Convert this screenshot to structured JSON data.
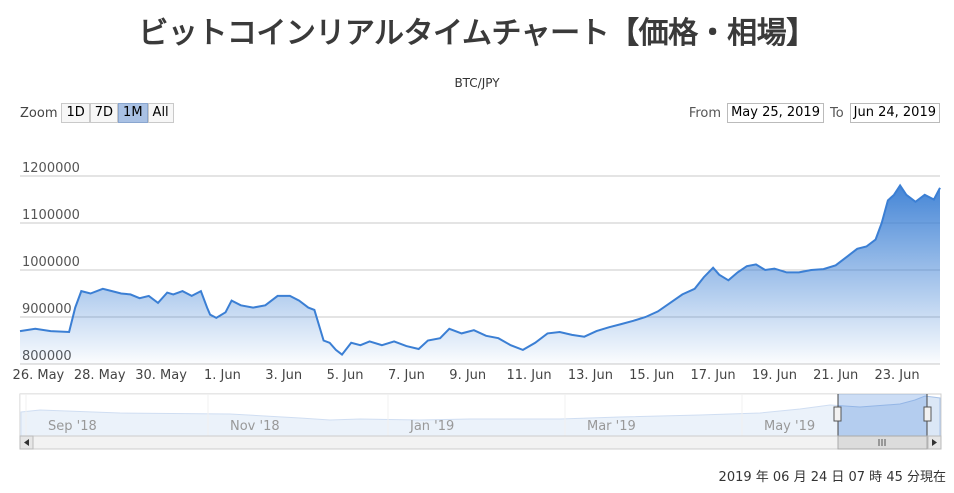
{
  "title": "ビットコインリアルタイムチャート【価格・相場】",
  "subtitle": "BTC/JPY",
  "zoom": {
    "label": "Zoom",
    "buttons": [
      "1D",
      "7D",
      "1M",
      "All"
    ],
    "active": "1M"
  },
  "range": {
    "from_label": "From",
    "from_value": "May 25, 2019",
    "to_label": "To",
    "to_value": "Jun 24, 2019"
  },
  "timestamp": "2019 年 06 月 24 日  07 時 45 分現在",
  "colors": {
    "line": "#3b7fd4",
    "fill_top": "#3b7fd4",
    "fill_bottom": "#ffffff",
    "grid": "#c8c8c8"
  },
  "chart_data": {
    "type": "area",
    "ylim": [
      800000,
      1200000
    ],
    "y_ticks": [
      "800000",
      "900000",
      "1000000",
      "1100000",
      "1200000"
    ],
    "x_range_days": [
      0,
      30
    ],
    "x_ticks": [
      {
        "label": "26. May",
        "day": 0.6
      },
      {
        "label": "28. May",
        "day": 2.6
      },
      {
        "label": "30. May",
        "day": 4.6
      },
      {
        "label": "1. Jun",
        "day": 6.6
      },
      {
        "label": "3. Jun",
        "day": 8.6
      },
      {
        "label": "5. Jun",
        "day": 10.6
      },
      {
        "label": "7. Jun",
        "day": 12.6
      },
      {
        "label": "9. Jun",
        "day": 14.6
      },
      {
        "label": "11. Jun",
        "day": 16.6
      },
      {
        "label": "13. Jun",
        "day": 18.6
      },
      {
        "label": "15. Jun",
        "day": 20.6
      },
      {
        "label": "17. Jun",
        "day": 22.6
      },
      {
        "label": "19. Jun",
        "day": 24.6
      },
      {
        "label": "21. Jun",
        "day": 26.6
      },
      {
        "label": "23. Jun",
        "day": 28.6
      }
    ],
    "series": [
      {
        "x": [
          0,
          0.5,
          1.0,
          1.6,
          1.8,
          2.0,
          2.3,
          2.7,
          3.0,
          3.3,
          3.6,
          3.9,
          4.2,
          4.5,
          4.8,
          5.0,
          5.3,
          5.6,
          5.9,
          6.1,
          6.2,
          6.4,
          6.7,
          6.9,
          7.2,
          7.6,
          8.0,
          8.4,
          8.8,
          9.1,
          9.4,
          9.6,
          9.9,
          10.1,
          10.3,
          10.5,
          10.8,
          11.1,
          11.4,
          11.8,
          12.2,
          12.6,
          13.0,
          13.3,
          13.7,
          14.0,
          14.4,
          14.8,
          15.2,
          15.6,
          16.0,
          16.4,
          16.8,
          17.2,
          17.6,
          18.0,
          18.4,
          18.8,
          19.2,
          19.6,
          20.0,
          20.4,
          20.8,
          21.2,
          21.6,
          22.0,
          22.3,
          22.6,
          22.8,
          23.1,
          23.4,
          23.7,
          24.0,
          24.3,
          24.6,
          25.0,
          25.4,
          25.8,
          26.2,
          26.6,
          27.0,
          27.3,
          27.6,
          27.9,
          28.1,
          28.3,
          28.5,
          28.7,
          28.9,
          29.2,
          29.5,
          29.8,
          30.0
        ],
        "y": [
          870000,
          875000,
          870000,
          868000,
          920000,
          955000,
          950000,
          960000,
          955000,
          950000,
          948000,
          940000,
          945000,
          930000,
          952000,
          948000,
          955000,
          945000,
          955000,
          920000,
          905000,
          898000,
          910000,
          935000,
          925000,
          920000,
          925000,
          945000,
          945000,
          935000,
          920000,
          915000,
          850000,
          845000,
          830000,
          820000,
          845000,
          840000,
          848000,
          840000,
          848000,
          838000,
          832000,
          850000,
          855000,
          875000,
          865000,
          872000,
          860000,
          855000,
          840000,
          830000,
          845000,
          865000,
          868000,
          862000,
          858000,
          870000,
          878000,
          885000,
          892000,
          900000,
          912000,
          930000,
          948000,
          960000,
          985000,
          1005000,
          990000,
          978000,
          995000,
          1008000,
          1012000,
          1000000,
          1003000,
          995000,
          995000,
          1000000,
          1002000,
          1010000,
          1030000,
          1045000,
          1050000,
          1065000,
          1100000,
          1148000,
          1160000,
          1180000,
          1160000,
          1145000,
          1160000,
          1150000,
          1175000
        ]
      }
    ],
    "navigator": {
      "x_ticks": [
        "Sep '18",
        "Nov '18",
        "Jan '19",
        "Mar '19",
        "May '19"
      ]
    }
  }
}
